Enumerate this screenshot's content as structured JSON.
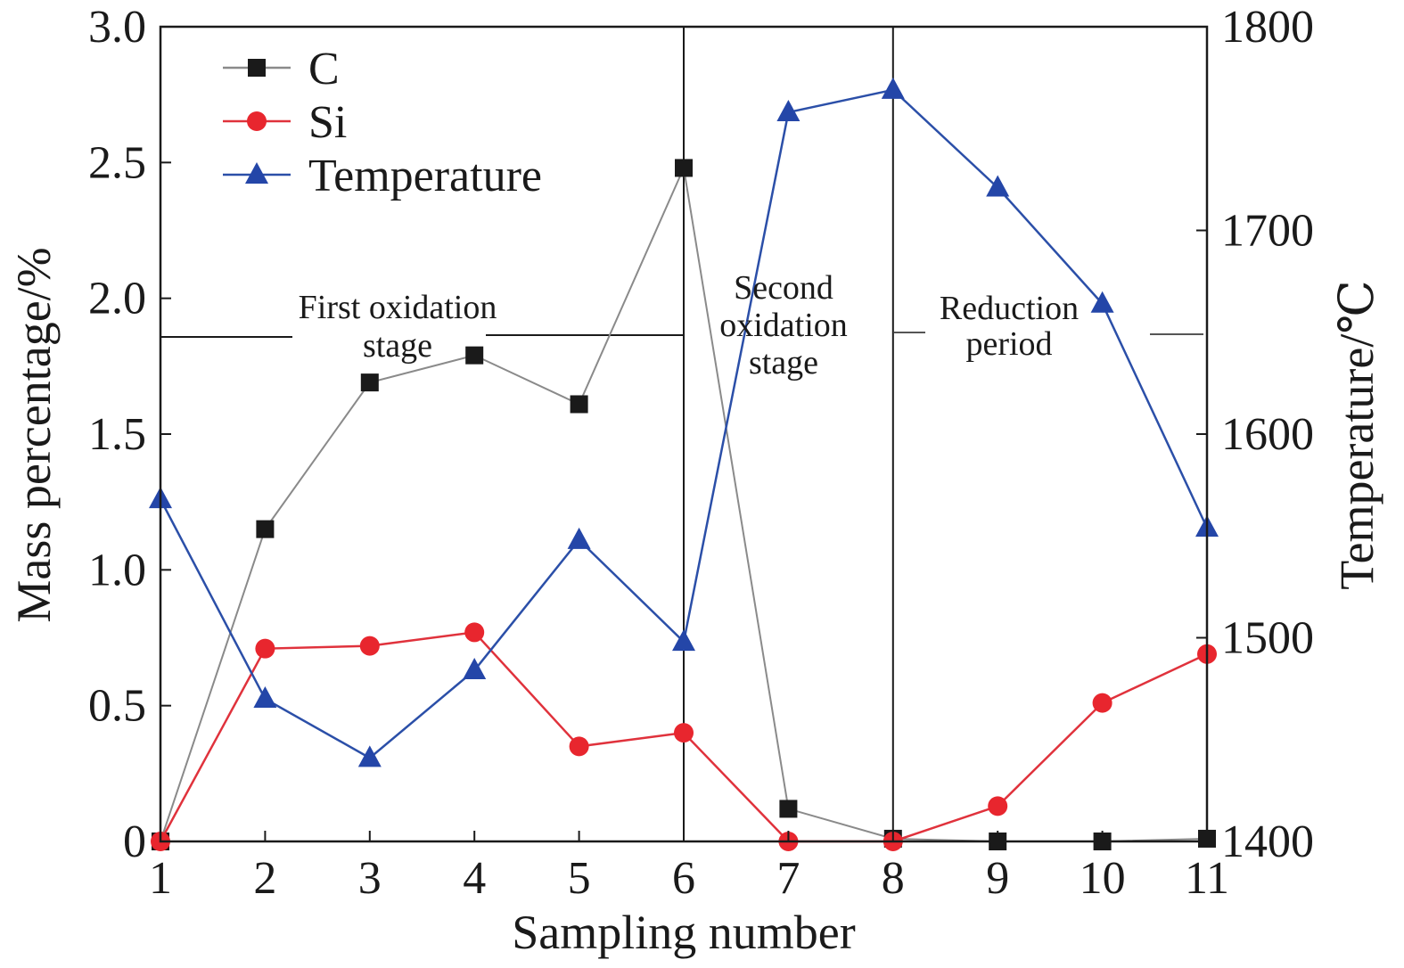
{
  "chart_data": {
    "type": "line",
    "xlabel": "Sampling number",
    "ylabel": "Mass percentage/%",
    "y2label": "Temperature/℃",
    "x": [
      1,
      2,
      3,
      4,
      5,
      6,
      7,
      8,
      9,
      10,
      11
    ],
    "xlim": [
      1,
      11
    ],
    "ylim": [
      0,
      3.0
    ],
    "y2lim": [
      1400,
      1800
    ],
    "x_ticks": [
      "1",
      "2",
      "3",
      "4",
      "5",
      "6",
      "7",
      "8",
      "9",
      "10",
      "11"
    ],
    "y_ticks": [
      "0",
      "0.5",
      "1.0",
      "1.5",
      "2.0",
      "2.5",
      "3.0"
    ],
    "y2_ticks": [
      "1400",
      "1500",
      "1600",
      "1700",
      "1800"
    ],
    "legend_position": "top-left",
    "grid": false,
    "series": [
      {
        "name": "C",
        "axis": "left",
        "marker": "square",
        "line_color": "#8a8a8a",
        "marker_color": "#1a1a1a",
        "values": [
          0.0,
          1.15,
          1.69,
          1.79,
          1.61,
          2.48,
          0.12,
          0.01,
          0.0,
          0.0,
          0.01
        ]
      },
      {
        "name": "Si",
        "axis": "left",
        "marker": "circle",
        "line_color": "#e0323c",
        "marker_color": "#e8262e",
        "values": [
          0.0,
          0.71,
          0.72,
          0.77,
          0.35,
          0.4,
          0.0,
          0.0,
          0.13,
          0.51,
          0.69
        ]
      },
      {
        "name": "Temperature",
        "axis": "right",
        "marker": "triangle",
        "line_color": "#2b4fa8",
        "marker_color": "#2446a8",
        "values": [
          1568,
          1470,
          1441,
          1484,
          1548,
          1498,
          1758,
          1769,
          1721,
          1664,
          1554
        ]
      }
    ],
    "dividers": [
      6,
      8
    ],
    "stage_labels": {
      "first": [
        "First oxidation",
        "stage"
      ],
      "second": [
        "Second",
        "oxidation",
        "stage"
      ],
      "reduction": [
        "Reduction",
        "period"
      ]
    }
  }
}
